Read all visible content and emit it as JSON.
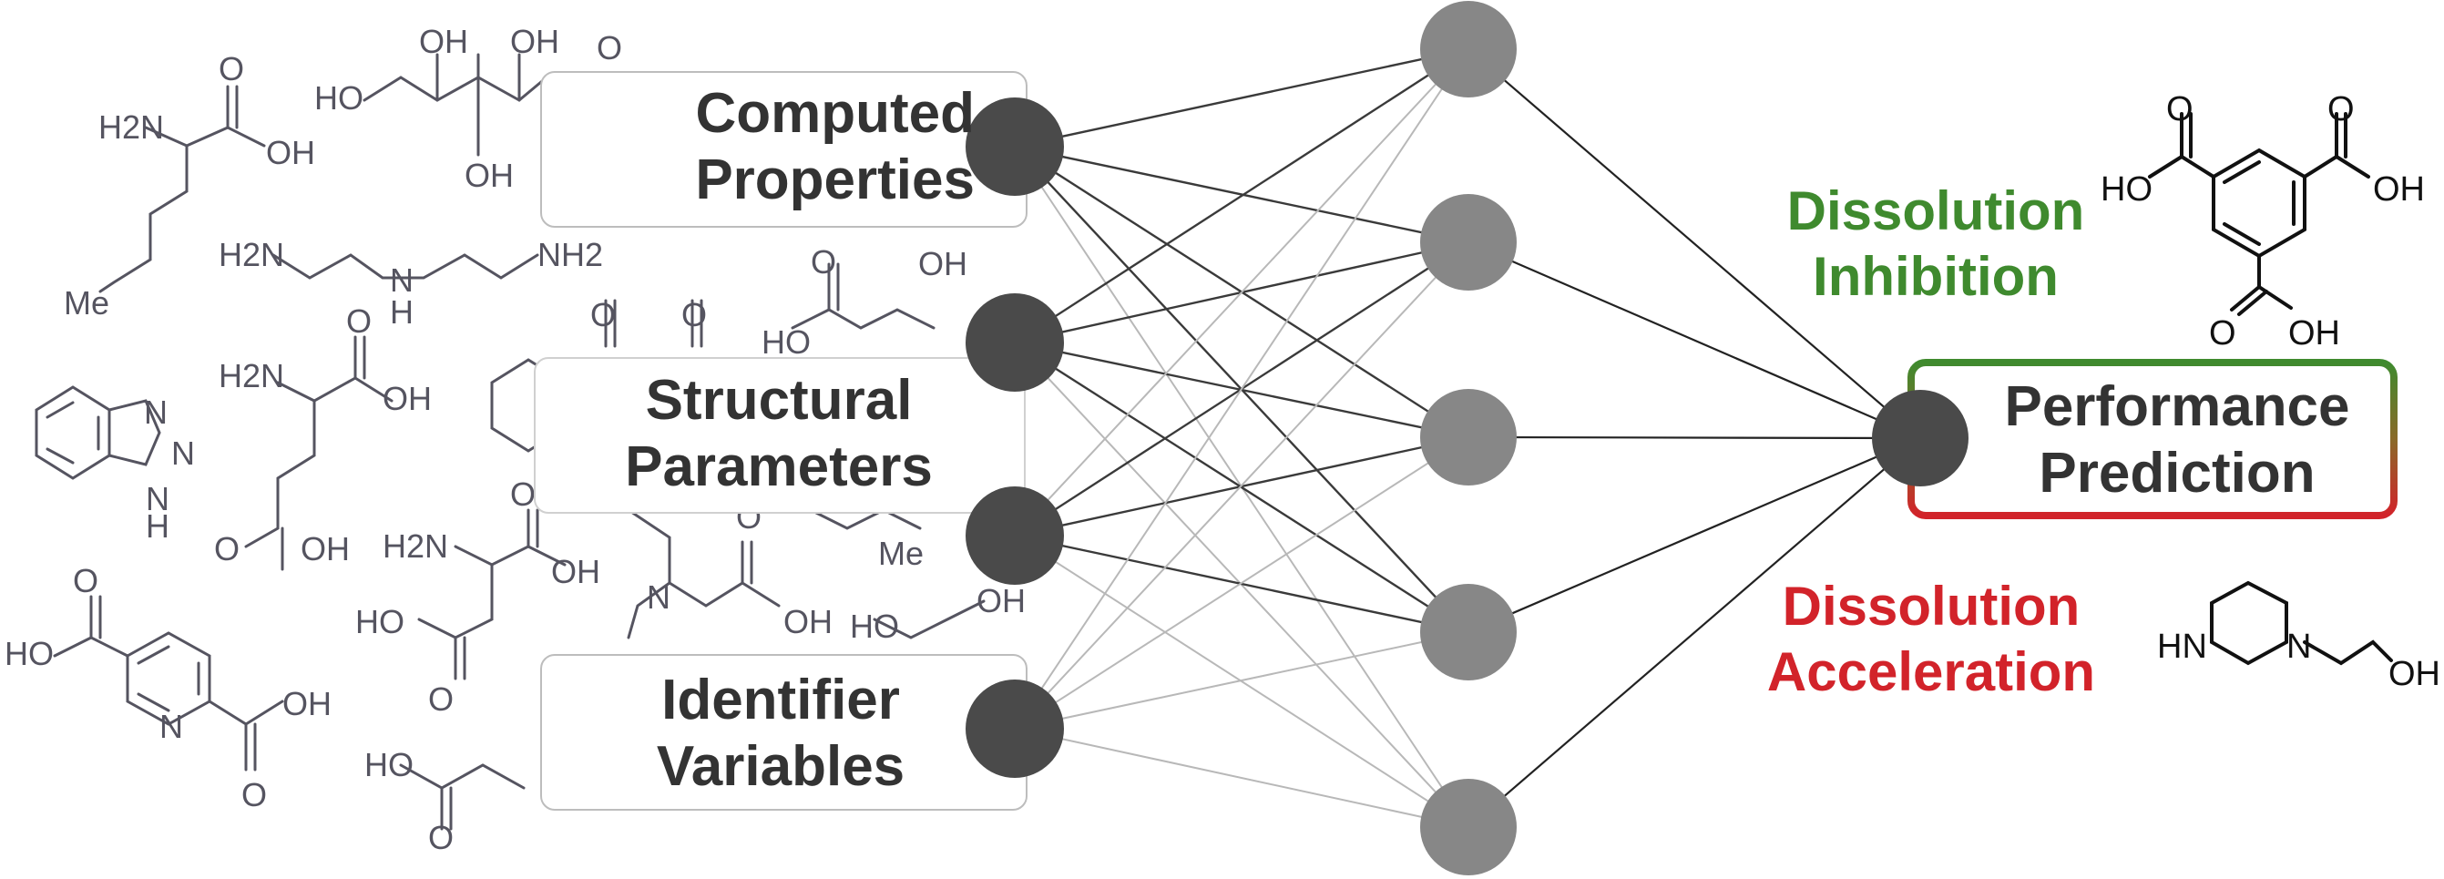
{
  "inputs": {
    "computed": [
      "Computed",
      "Properties"
    ],
    "structural": [
      "Structural",
      "Parameters"
    ],
    "identifier": [
      "Identifier",
      "Variables"
    ]
  },
  "output": [
    "Performance",
    "Prediction"
  ],
  "classes": {
    "inhibition": [
      "Dissolution",
      "Inhibition"
    ],
    "acceleration": [
      "Dissolution",
      "Acceleration"
    ]
  },
  "chem_labels": {
    "oh": "OH",
    "ho": "HO",
    "o": "O",
    "h2n": "H2N",
    "nh2": "NH2",
    "n": "N",
    "h": "H",
    "hn": "HN",
    "me": "Me"
  },
  "colors": {
    "input_node": "#4a4a4a",
    "hidden_node": "#878787",
    "output_node": "#4a4a4a",
    "inhibition": "#3f8a2e",
    "acceleration": "#d2232a",
    "box_border": "#bdbdbd"
  }
}
